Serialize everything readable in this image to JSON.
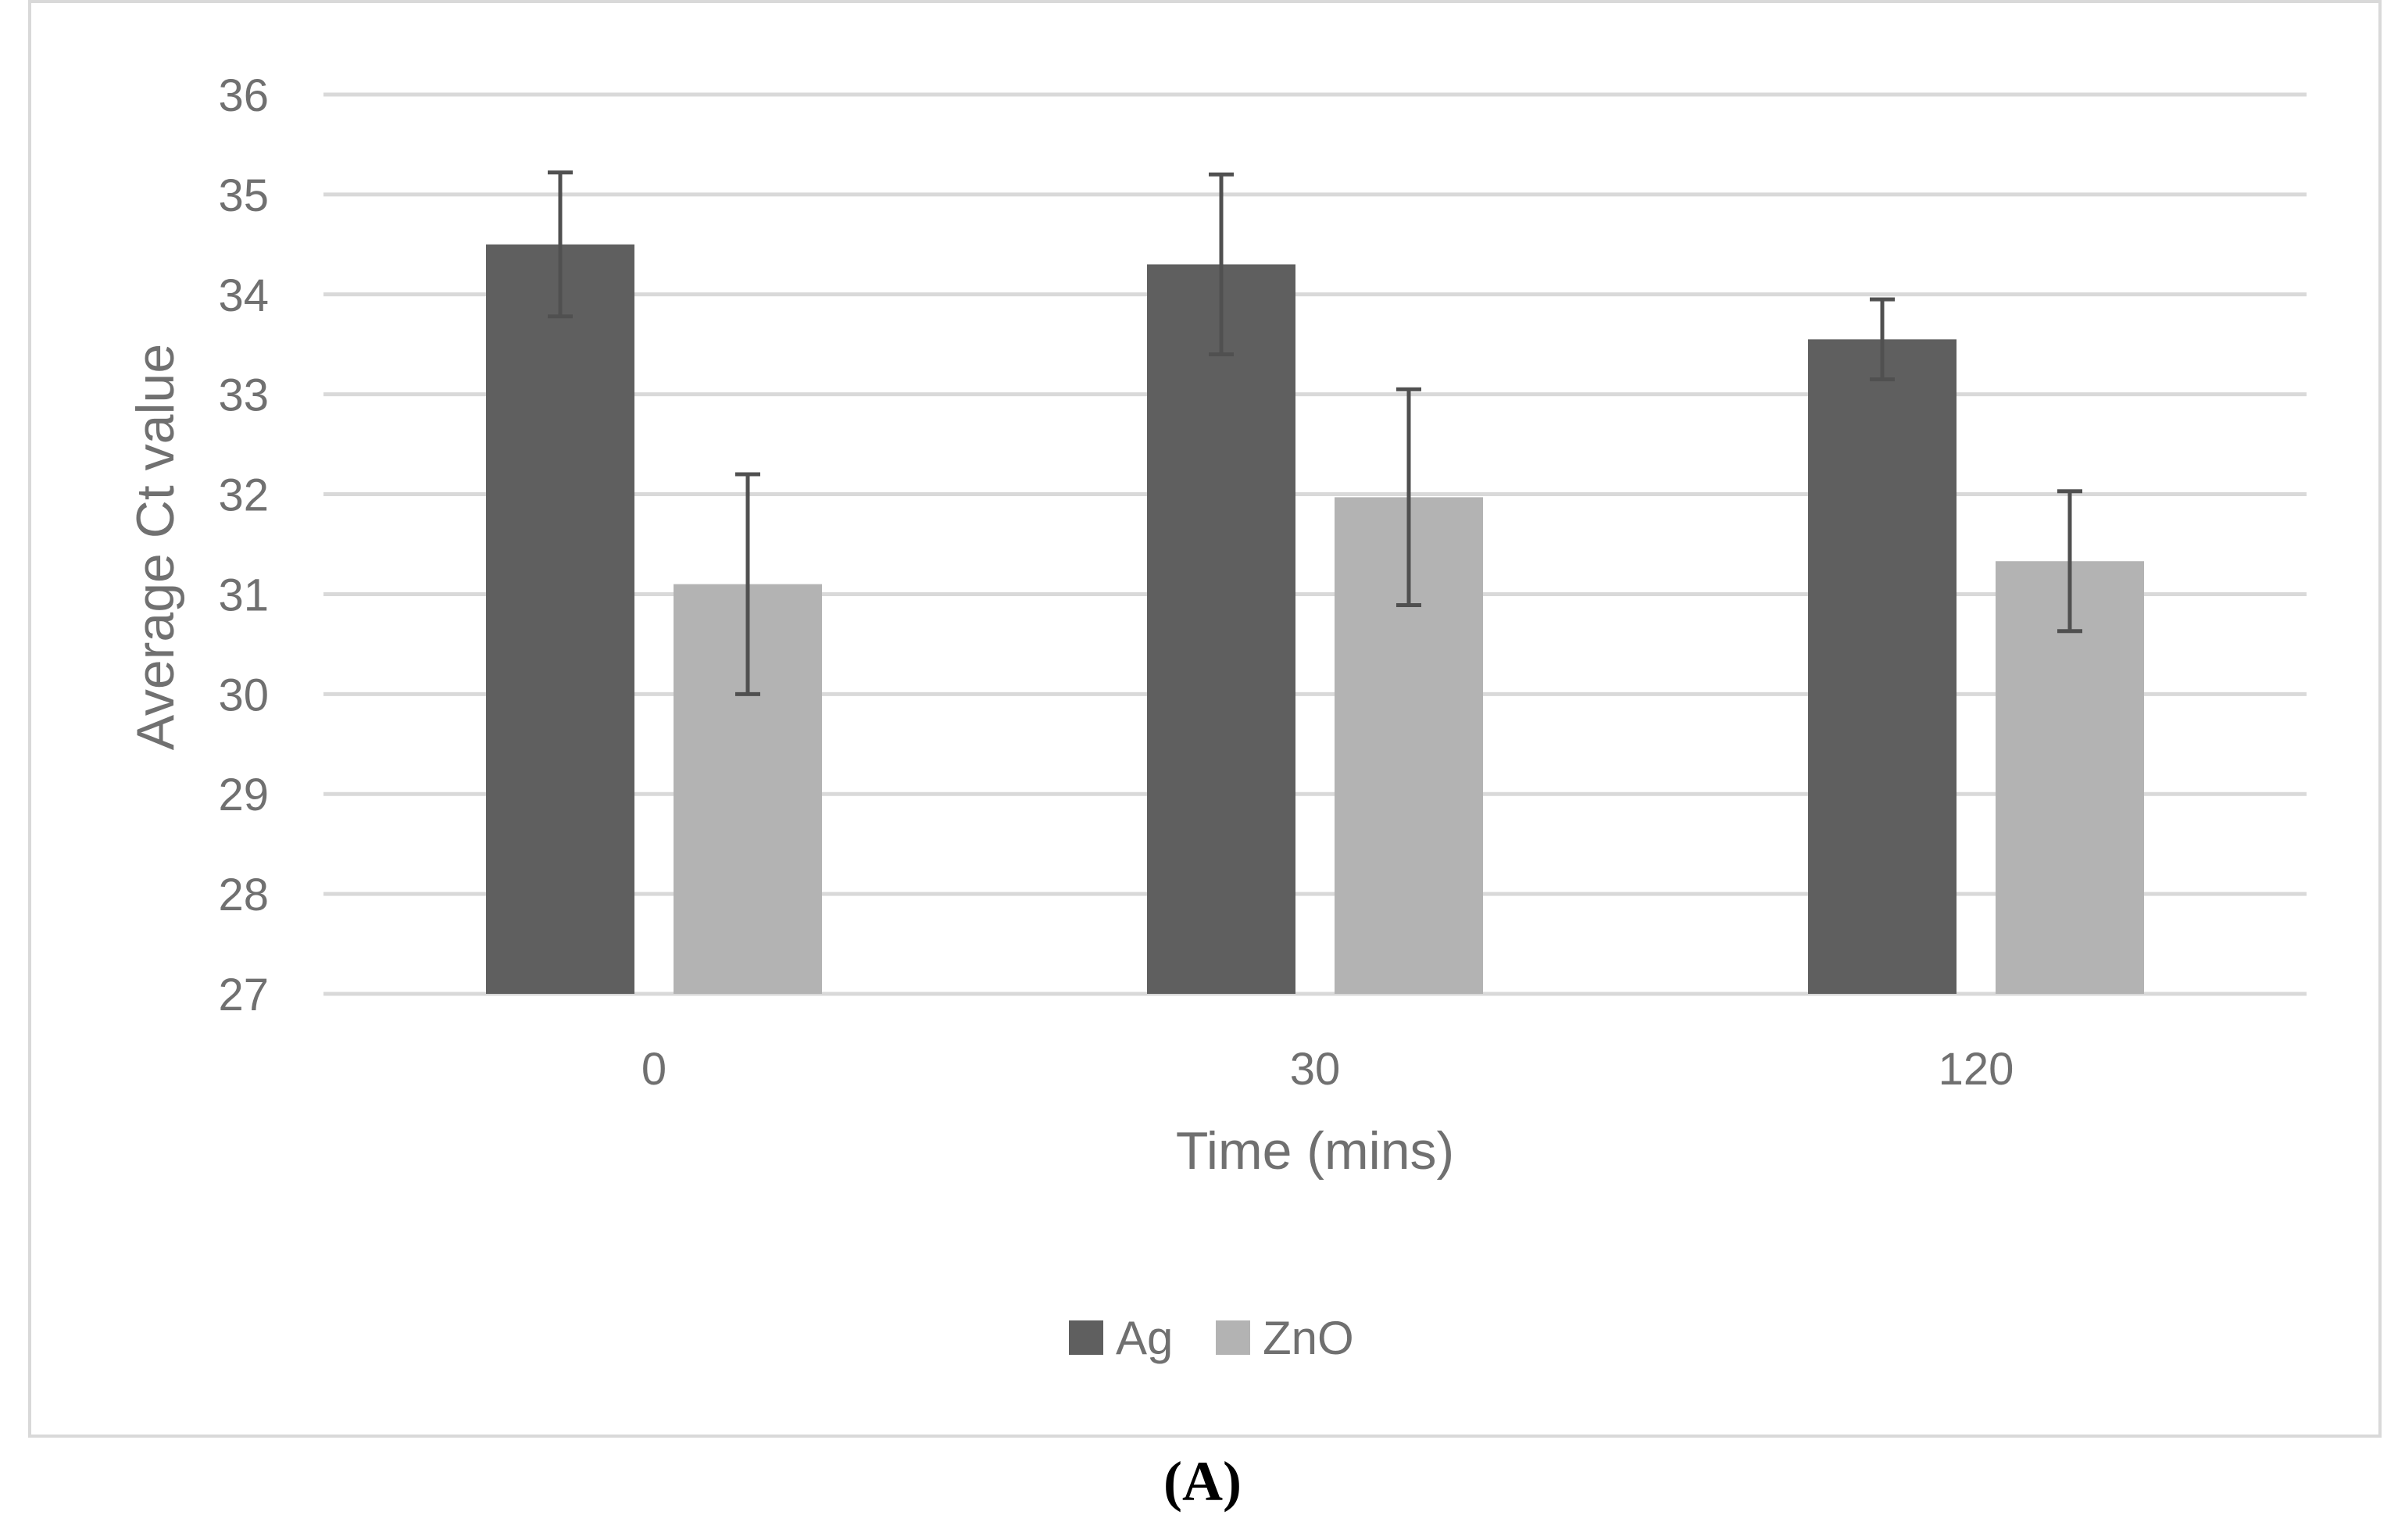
{
  "chart_data": {
    "type": "bar",
    "categories": [
      "0",
      "30",
      "120"
    ],
    "series": [
      {
        "name": "Ag",
        "color": "#5f5f5f",
        "values": [
          34.5,
          34.3,
          33.55
        ],
        "error_plus_minus": [
          0.72,
          0.9,
          0.4
        ]
      },
      {
        "name": "ZnO",
        "color": "#b3b3b3",
        "values": [
          31.1,
          31.97,
          31.33
        ],
        "error_plus_minus": [
          1.1,
          1.08,
          0.7
        ]
      }
    ],
    "xlabel": "Time (mins)",
    "ylabel": "Average Ct value",
    "ylim": [
      27,
      36
    ],
    "yticks": [
      27,
      28,
      29,
      30,
      31,
      32,
      33,
      34,
      35,
      36
    ],
    "grid": true,
    "legend_position": "bottom",
    "error_bar_color": "#505050",
    "gridline_color": "#d9d9d9"
  },
  "panel_label": "(A)"
}
